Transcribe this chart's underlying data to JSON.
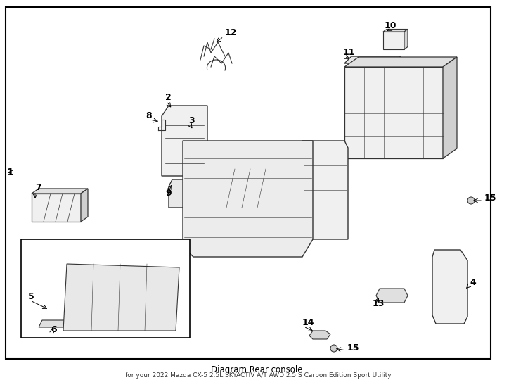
{
  "title": "Diagram Rear console.",
  "subtitle": "for your 2022 Mazda CX-5 2.5L SKYACTIV A/T AWD 2.5 S Carbon Edition Sport Utility",
  "bg_color": "#ffffff",
  "border_color": "#000000",
  "line_color": "#333333",
  "part_color": "#555555",
  "label_color": "#000000",
  "figsize": [
    7.34,
    5.4
  ],
  "dpi": 100
}
